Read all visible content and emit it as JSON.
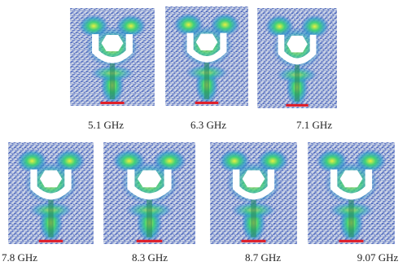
{
  "panels": [
    {
      "label": "5.1 GHz"
    },
    {
      "label": "6.3 GHz"
    },
    {
      "label": "7.1 GHz"
    },
    {
      "label": "7.8 GHz"
    },
    {
      "label": "8.3 GHz"
    },
    {
      "label": "8.7 GHz"
    },
    {
      "label": "9.07 GHz"
    }
  ]
}
